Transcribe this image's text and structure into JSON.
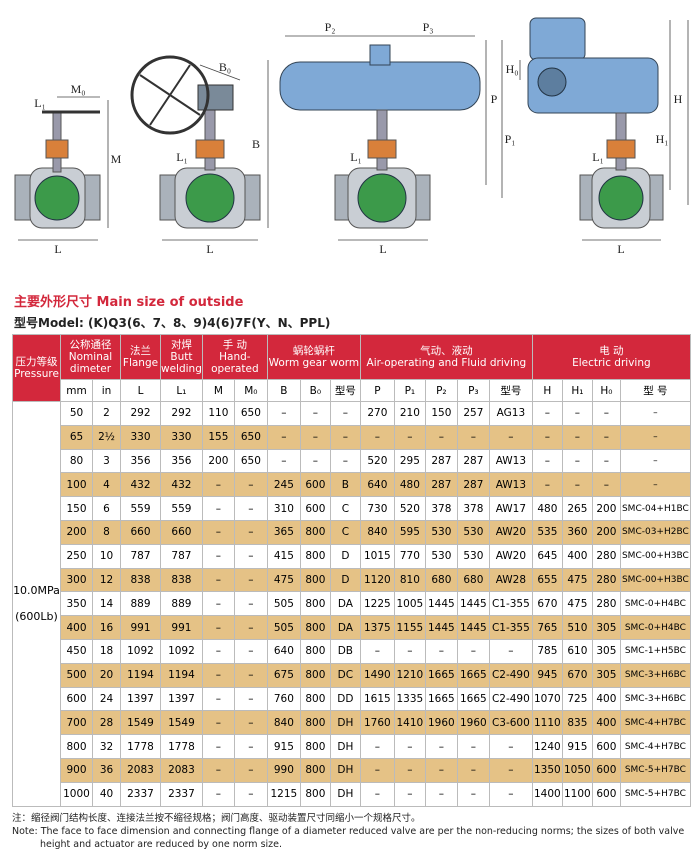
{
  "diagrams": [
    {
      "labels": [
        "L₁",
        "M₀",
        "M",
        "L"
      ]
    },
    {
      "labels": [
        "B₀",
        "B",
        "L₁",
        "L"
      ]
    },
    {
      "labels": [
        "P₂",
        "P₃",
        "P",
        "P₁",
        "L₁",
        "L"
      ]
    },
    {
      "labels": [
        "H₀",
        "H",
        "H₁",
        "L₁",
        "L"
      ]
    }
  ],
  "section": {
    "title": "主要外形尺寸 Main size of outside",
    "model": "型号Model: (K)Q3(6、7、8、9)4(6)7F(Y、N、PPL)"
  },
  "table": {
    "header": [
      [
        "压力等级",
        "Pressure"
      ],
      [
        "公称通径",
        "Nominal",
        "dimeter"
      ],
      [
        "法兰",
        "Flange"
      ],
      [
        "对焊",
        "Butt",
        "welding"
      ],
      [
        "手 动",
        "Hand-",
        "operated"
      ],
      [
        "蜗轮蜗杆",
        "Worm gear worm"
      ],
      [
        "气动、液动",
        "Air-operating and Fluid driving"
      ],
      [
        "电 动",
        "Electric driving"
      ]
    ],
    "subheader": [
      "mm",
      "in",
      "L",
      "L₁",
      "M",
      "M₀",
      "B",
      "B₀",
      "型号",
      "P",
      "P₁",
      "P₂",
      "P₃",
      "型号",
      "H",
      "H₁",
      "H₀",
      "型 号"
    ],
    "pressure": [
      "10.0MPa",
      "(600Lb)"
    ],
    "rows": [
      [
        "50",
        "2",
        "292",
        "292",
        "110",
        "650",
        "–",
        "–",
        "–",
        "270",
        "210",
        "150",
        "257",
        "AG13",
        "–",
        "–",
        "–",
        "–"
      ],
      [
        "65",
        "2½",
        "330",
        "330",
        "155",
        "650",
        "–",
        "–",
        "–",
        "–",
        "–",
        "–",
        "–",
        "–",
        "–",
        "–",
        "–",
        "–"
      ],
      [
        "80",
        "3",
        "356",
        "356",
        "200",
        "650",
        "–",
        "–",
        "–",
        "520",
        "295",
        "287",
        "287",
        "AW13",
        "–",
        "–",
        "–",
        "–"
      ],
      [
        "100",
        "4",
        "432",
        "432",
        "–",
        "–",
        "245",
        "600",
        "B",
        "640",
        "480",
        "287",
        "287",
        "AW13",
        "–",
        "–",
        "–",
        "–"
      ],
      [
        "150",
        "6",
        "559",
        "559",
        "–",
        "–",
        "310",
        "600",
        "C",
        "730",
        "520",
        "378",
        "378",
        "AW17",
        "480",
        "265",
        "200",
        "SMC-04+H1BC"
      ],
      [
        "200",
        "8",
        "660",
        "660",
        "–",
        "–",
        "365",
        "800",
        "C",
        "840",
        "595",
        "530",
        "530",
        "AW20",
        "535",
        "360",
        "200",
        "SMC-03+H2BC"
      ],
      [
        "250",
        "10",
        "787",
        "787",
        "–",
        "–",
        "415",
        "800",
        "D",
        "1015",
        "770",
        "530",
        "530",
        "AW20",
        "645",
        "400",
        "280",
        "SMC-00+H3BC"
      ],
      [
        "300",
        "12",
        "838",
        "838",
        "–",
        "–",
        "475",
        "800",
        "D",
        "1120",
        "810",
        "680",
        "680",
        "AW28",
        "655",
        "475",
        "280",
        "SMC-00+H3BC"
      ],
      [
        "350",
        "14",
        "889",
        "889",
        "–",
        "–",
        "505",
        "800",
        "DA",
        "1225",
        "1005",
        "1445",
        "1445",
        "C1-355",
        "670",
        "475",
        "280",
        "SMC-0+H4BC"
      ],
      [
        "400",
        "16",
        "991",
        "991",
        "–",
        "–",
        "505",
        "800",
        "DA",
        "1375",
        "1155",
        "1445",
        "1445",
        "C1-355",
        "765",
        "510",
        "305",
        "SMC-0+H4BC"
      ],
      [
        "450",
        "18",
        "1092",
        "1092",
        "–",
        "–",
        "640",
        "800",
        "DB",
        "–",
        "–",
        "–",
        "–",
        "–",
        "785",
        "610",
        "305",
        "SMC-1+H5BC"
      ],
      [
        "500",
        "20",
        "1194",
        "1194",
        "–",
        "–",
        "675",
        "800",
        "DC",
        "1490",
        "1210",
        "1665",
        "1665",
        "C2-490",
        "945",
        "670",
        "305",
        "SMC-3+H6BC"
      ],
      [
        "600",
        "24",
        "1397",
        "1397",
        "–",
        "–",
        "760",
        "800",
        "DD",
        "1615",
        "1335",
        "1665",
        "1665",
        "C2-490",
        "1070",
        "725",
        "400",
        "SMC-3+H6BC"
      ],
      [
        "700",
        "28",
        "1549",
        "1549",
        "–",
        "–",
        "840",
        "800",
        "DH",
        "1760",
        "1410",
        "1960",
        "1960",
        "C3-600",
        "1110",
        "835",
        "400",
        "SMC-4+H7BC"
      ],
      [
        "800",
        "32",
        "1778",
        "1778",
        "–",
        "–",
        "915",
        "800",
        "DH",
        "–",
        "–",
        "–",
        "–",
        "–",
        "1240",
        "915",
        "600",
        "SMC-4+H7BC"
      ],
      [
        "900",
        "36",
        "2083",
        "2083",
        "–",
        "–",
        "990",
        "800",
        "DH",
        "–",
        "–",
        "–",
        "–",
        "–",
        "1350",
        "1050",
        "600",
        "SMC-5+H7BC"
      ],
      [
        "1000",
        "40",
        "2337",
        "2337",
        "–",
        "–",
        "1215",
        "800",
        "DH",
        "–",
        "–",
        "–",
        "–",
        "–",
        "1400",
        "1100",
        "600",
        "SMC-5+H7BC"
      ]
    ]
  },
  "notes": [
    "注：缩径阀门结构长度、连接法兰按不缩径规格；阀门高度、驱动装置尺寸同缩小一个规格尺寸。",
    "Note: The face to face dimension and connecting flange of a diameter reduced valve are per the non-reducing norms; the sizes of both valve height and actuator are reduced by one norm size."
  ]
}
